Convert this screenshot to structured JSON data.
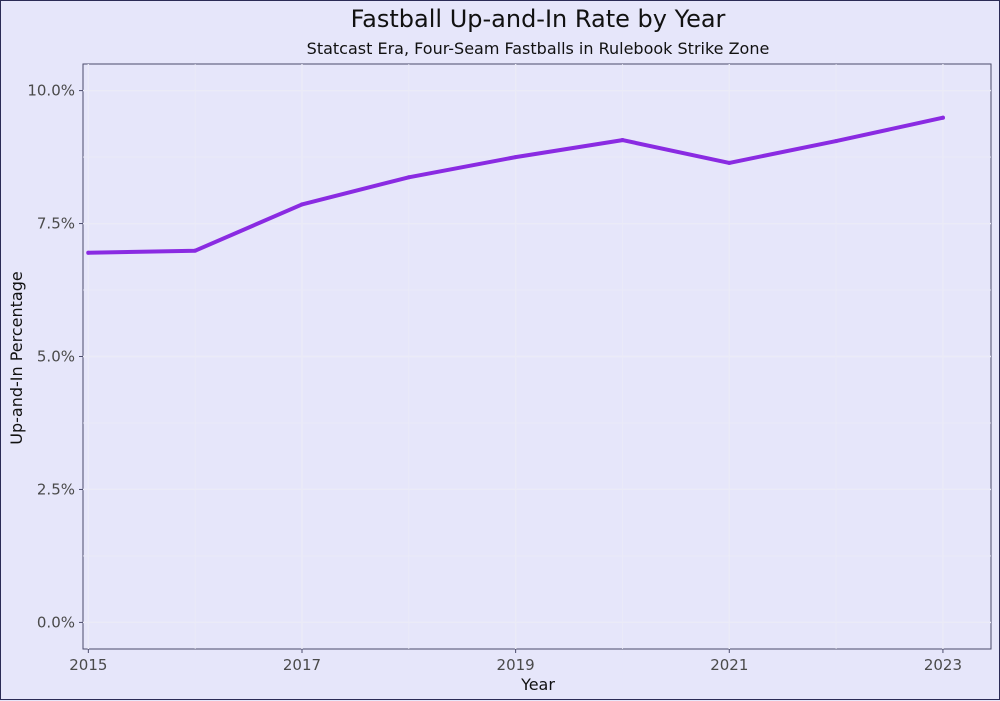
{
  "chart_data": {
    "type": "line",
    "title": "Fastball Up-and-In Rate by Year",
    "subtitle": "Statcast Era, Four-Seam Fastballs in Rulebook Strike Zone",
    "xlabel": "Year",
    "ylabel": "Up-and-In Percentage",
    "x": [
      2015,
      2016,
      2017,
      2018,
      2019,
      2020,
      2021,
      2022,
      2023
    ],
    "y": [
      6.95,
      6.99,
      7.86,
      8.37,
      8.75,
      9.07,
      8.64,
      9.05,
      9.49
    ],
    "xlim": [
      2014.95,
      2023.45
    ],
    "ylim": [
      -0.5,
      10.5
    ],
    "x_ticks": [
      "2015",
      "2017",
      "2019",
      "2021",
      "2023"
    ],
    "y_ticks": [
      "0.0%",
      "2.5%",
      "5.0%",
      "7.5%",
      "10.0%"
    ],
    "line_color": "#8a2be2",
    "background_color": "#e6e6fa",
    "grid": true,
    "legend": "none"
  }
}
